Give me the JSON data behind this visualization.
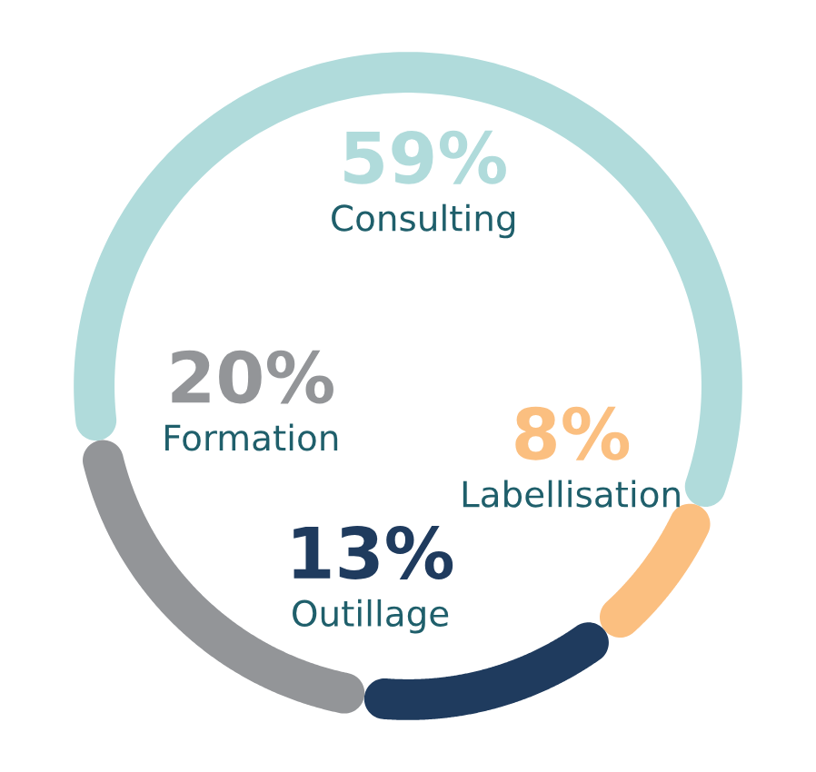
{
  "chart_data": {
    "type": "donut",
    "categories": [
      "Consulting",
      "Labellisation",
      "Outillage",
      "Formation"
    ],
    "values": [
      59,
      8,
      13,
      20
    ],
    "value_labels": [
      "59%",
      "8%",
      "13%",
      "20%"
    ],
    "colors": [
      "#b0dbdb",
      "#fbbf80",
      "#1f3b5e",
      "#939598"
    ],
    "data_labels": true
  }
}
